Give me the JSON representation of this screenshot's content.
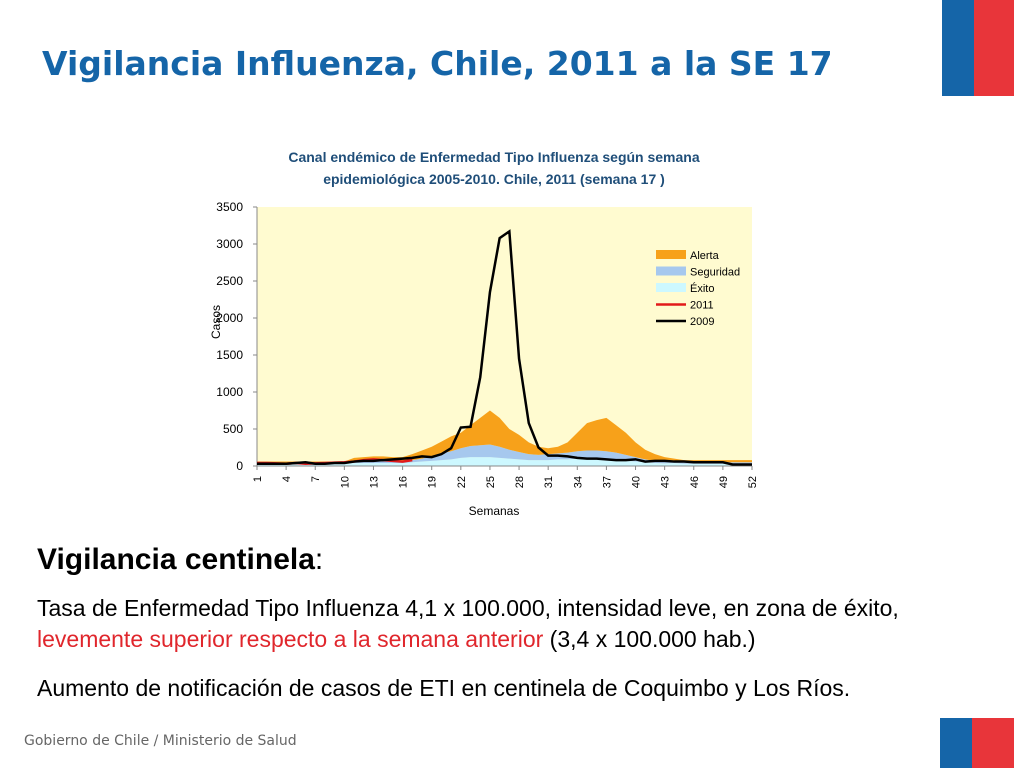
{
  "title": "Vigilancia Influenza, Chile, 2011 a la SE 17",
  "chart_data": {
    "type": "area-line",
    "title": [
      "Canal  endémico de Enfermedad Tipo Influenza según semana",
      "epidemiológica 2005-2010.  Chile, 2011 (semana 17 )"
    ],
    "x_label": "Semanas",
    "y_label": "Casos",
    "x": [
      1,
      2,
      3,
      4,
      5,
      6,
      7,
      8,
      9,
      10,
      11,
      12,
      13,
      14,
      15,
      16,
      17,
      18,
      19,
      20,
      21,
      22,
      23,
      24,
      25,
      26,
      27,
      28,
      29,
      30,
      31,
      32,
      33,
      34,
      35,
      36,
      37,
      38,
      39,
      40,
      41,
      42,
      43,
      44,
      45,
      46,
      47,
      48,
      49,
      50,
      51,
      52
    ],
    "xlim": [
      1,
      52
    ],
    "xticks": [
      1,
      4,
      7,
      10,
      13,
      16,
      19,
      22,
      25,
      28,
      31,
      34,
      37,
      40,
      43,
      46,
      49,
      52
    ],
    "ylim": [
      0,
      3500
    ],
    "yticks": [
      0,
      500,
      1000,
      1500,
      2000,
      2500,
      3000,
      3500
    ],
    "legend": "upper right",
    "series": [
      {
        "name": "Alerta",
        "kind": "area",
        "color": "#f7a11a",
        "values": [
          15,
          15,
          15,
          15,
          15,
          15,
          15,
          15,
          15,
          15,
          50,
          60,
          70,
          70,
          60,
          60,
          80,
          110,
          130,
          160,
          200,
          210,
          280,
          370,
          460,
          390,
          280,
          230,
          160,
          110,
          80,
          90,
          140,
          250,
          370,
          410,
          450,
          370,
          300,
          200,
          130,
          90,
          60,
          40,
          30,
          30,
          30,
          30,
          30,
          30,
          30,
          30
        ]
      },
      {
        "name": "Seguridad",
        "kind": "area",
        "color": "#a6c8ee",
        "values": [
          15,
          15,
          15,
          15,
          15,
          15,
          15,
          15,
          15,
          15,
          20,
          20,
          20,
          20,
          20,
          20,
          30,
          40,
          60,
          90,
          110,
          130,
          150,
          160,
          170,
          150,
          120,
          100,
          80,
          70,
          80,
          80,
          90,
          100,
          110,
          110,
          110,
          100,
          80,
          60,
          40,
          30,
          25,
          20,
          20,
          20,
          20,
          20,
          20,
          20,
          20,
          20
        ]
      },
      {
        "name": "Éxito",
        "kind": "area",
        "color": "#cdf8ff",
        "values": [
          30,
          30,
          30,
          30,
          30,
          30,
          30,
          30,
          30,
          30,
          40,
          40,
          40,
          40,
          40,
          40,
          50,
          60,
          70,
          80,
          90,
          110,
          120,
          120,
          120,
          110,
          100,
          90,
          80,
          80,
          80,
          90,
          90,
          100,
          100,
          100,
          90,
          80,
          70,
          60,
          50,
          40,
          35,
          40,
          30,
          30,
          30,
          30,
          30,
          30,
          30,
          30
        ]
      },
      {
        "name": "2011",
        "kind": "line",
        "color": "#e21a1a",
        "values": [
          40,
          40,
          35,
          30,
          40,
          30,
          35,
          40,
          45,
          50,
          60,
          80,
          90,
          80,
          70,
          60,
          80,
          null,
          null,
          null,
          null,
          null,
          null,
          null,
          null,
          null,
          null,
          null,
          null,
          null,
          null,
          null,
          null,
          null,
          null,
          null,
          null,
          null,
          null,
          null,
          null,
          null,
          null,
          null,
          null,
          null,
          null,
          null,
          null,
          null,
          null,
          null
        ]
      },
      {
        "name": "2009",
        "kind": "line",
        "color": "#000000",
        "values": [
          30,
          30,
          30,
          30,
          40,
          50,
          30,
          30,
          40,
          40,
          60,
          70,
          70,
          80,
          90,
          100,
          110,
          130,
          120,
          160,
          240,
          520,
          530,
          1200,
          2350,
          3080,
          3170,
          1450,
          580,
          250,
          140,
          140,
          130,
          110,
          100,
          100,
          90,
          80,
          80,
          90,
          60,
          70,
          70,
          60,
          60,
          50,
          50,
          50,
          50,
          20,
          20,
          20
        ]
      }
    ]
  },
  "heading": {
    "bold": "Vigilancia centinela",
    "rest": ":"
  },
  "paragraphs": [
    [
      "Tasa de Enfermedad Tipo Influenza 4,1 x 100.000, intensidad leve, en zona de éxito, ",
      "levemente superior respecto a la semana anterior",
      " (3,4 x 100.000 hab.)"
    ],
    [
      "Aumento de notificación de casos de ETI en centinela de Coquimbo y Los Ríos."
    ]
  ],
  "footer": "Gobierno de Chile / Ministerio de Salud"
}
